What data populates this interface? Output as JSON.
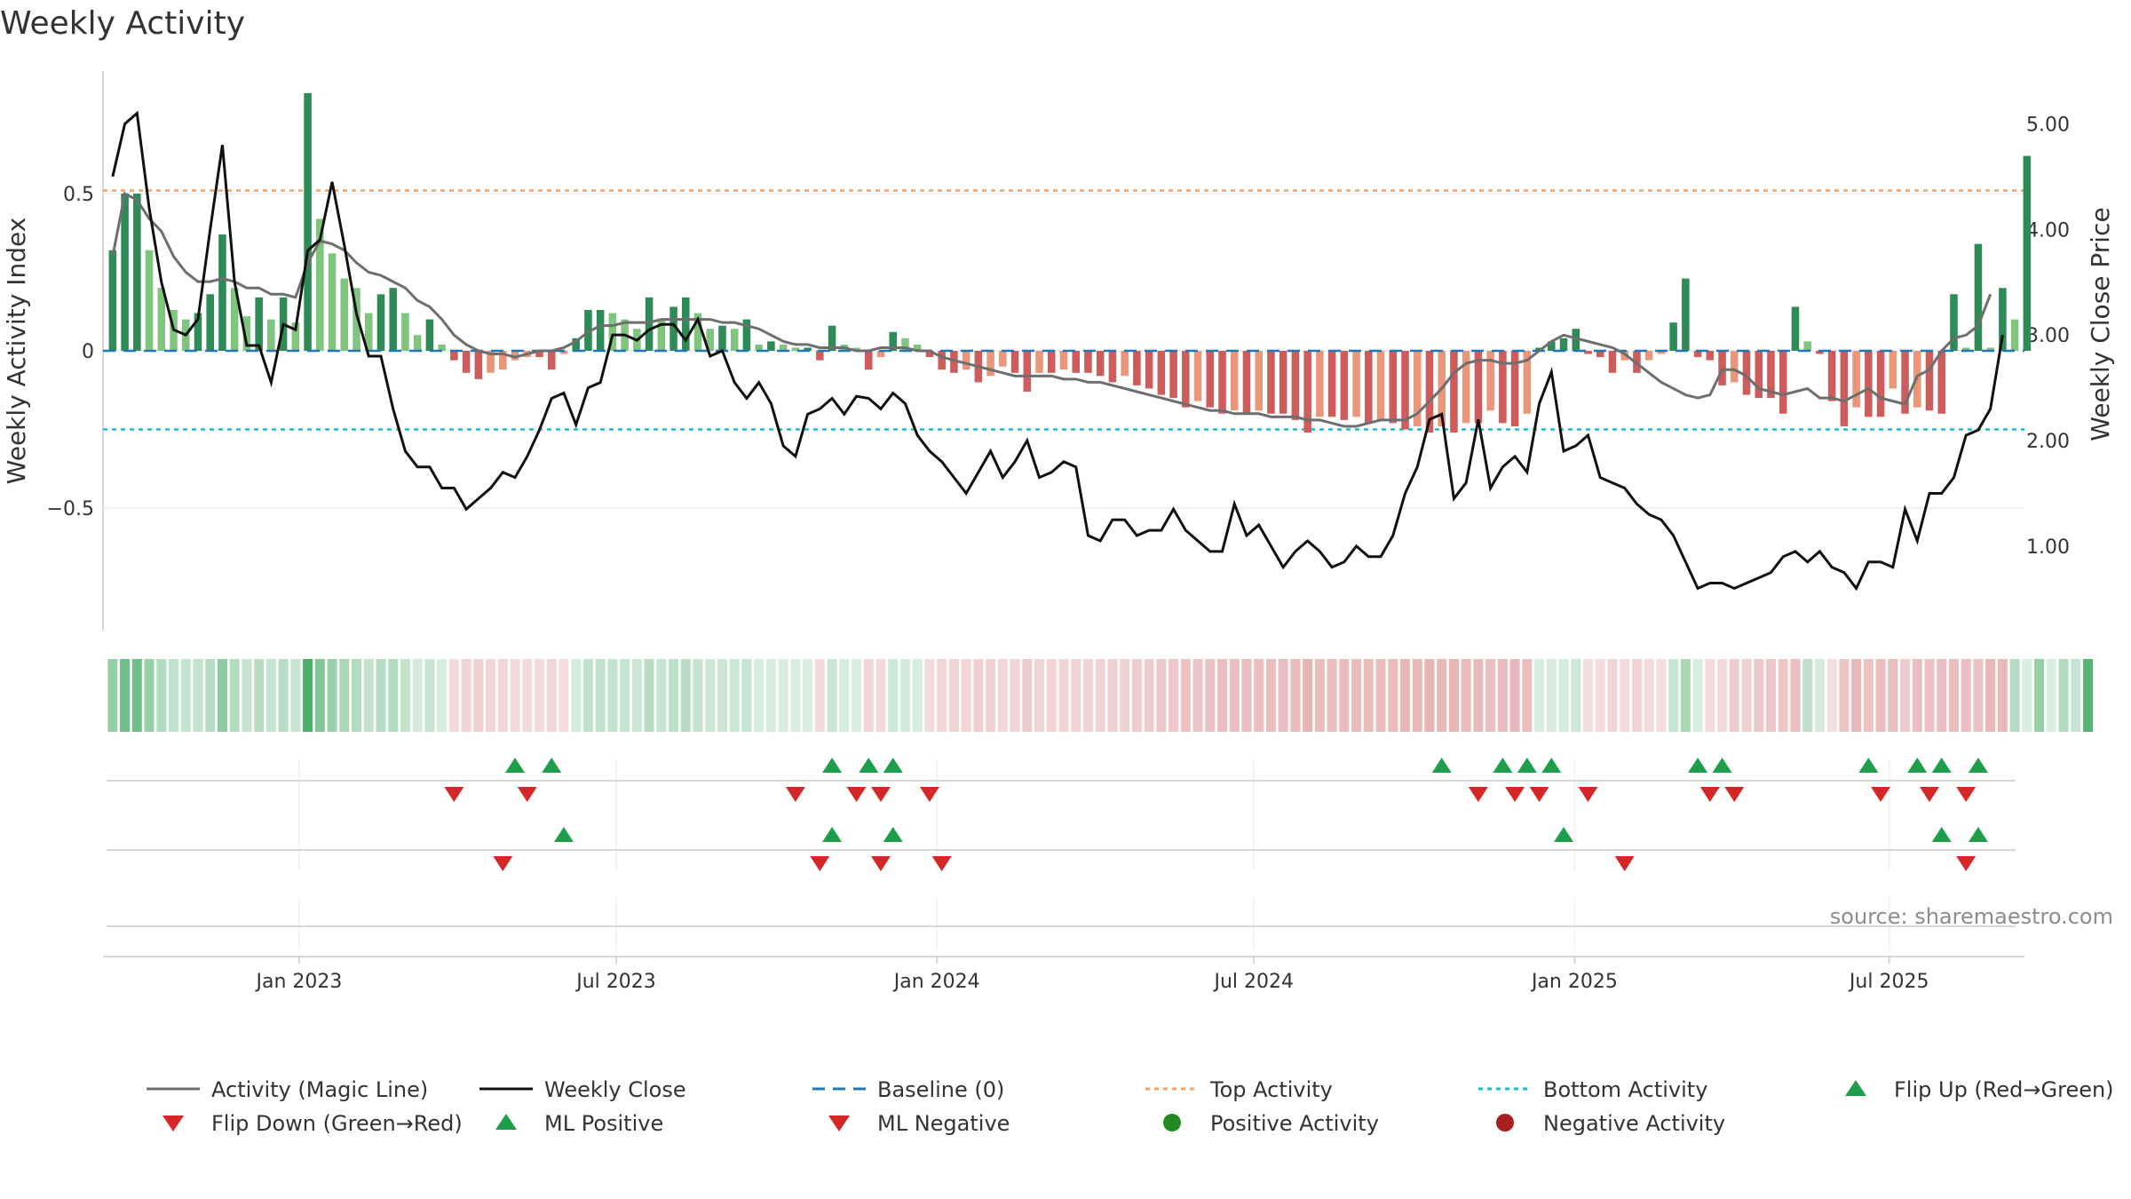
{
  "chart_data": {
    "type": "bar",
    "title": "Weekly Activity",
    "source": "source: sharemaestro.com",
    "left_axis": {
      "label": "Weekly Activity Index",
      "ylim": [
        -0.89,
        0.89
      ],
      "ticks": [
        {
          "value": 0.5,
          "label": "0.5"
        },
        {
          "value": 0,
          "label": "0"
        },
        {
          "value": -0.5,
          "label": "−0.5"
        }
      ]
    },
    "right_axis": {
      "label": "Weekly Close Price",
      "ylim": [
        0.2,
        5.5
      ],
      "ticks": [
        {
          "value": 5,
          "label": "5.00"
        },
        {
          "value": 4,
          "label": "4.00"
        },
        {
          "value": 3,
          "label": "3.00"
        },
        {
          "value": 2,
          "label": "2.00"
        },
        {
          "value": 1,
          "label": "1.00"
        }
      ]
    },
    "x_axis": {
      "start_week": 0,
      "end_week": 156,
      "ticks": [
        {
          "week": 15.3,
          "label": "Jan 2023"
        },
        {
          "week": 41.3,
          "label": "Jul 2023"
        },
        {
          "week": 67.6,
          "label": "Jan 2024"
        },
        {
          "week": 93.6,
          "label": "Jul 2024"
        },
        {
          "week": 119.9,
          "label": "Jan 2025"
        },
        {
          "week": 145.7,
          "label": "Jul 2025"
        }
      ]
    },
    "top_activity": 0.51,
    "bottom_activity": -0.25,
    "baseline": 0,
    "activity_weeks": [
      {
        "start": 0,
        "values": [
          0.32,
          0.5,
          0.5,
          0.32,
          0.2,
          0.13,
          0.1,
          0.12,
          0.18,
          0.37,
          0.2,
          0.11,
          0.17,
          0.1,
          0.17,
          0.09,
          0.82,
          0.42,
          0.31,
          0.23,
          0.2,
          0.12,
          0.18,
          0.2,
          0.12,
          0.05,
          0.1,
          0.02
        ]
      },
      {
        "start": 28,
        "values": [
          -0.03,
          -0.07,
          -0.09,
          -0.07,
          -0.06,
          -0.03,
          -0.02,
          -0.02,
          -0.06,
          -0.01
        ]
      },
      {
        "start": 38,
        "values": [
          0.04,
          0.13,
          0.13,
          0.12,
          0.1,
          0.07,
          0.17,
          0.1,
          0.14,
          0.17,
          0.12,
          0.07,
          0.08,
          0.07,
          0.1,
          0.02,
          0.03,
          0.02,
          0.01,
          0.01
        ]
      },
      {
        "start": 58,
        "values": [
          -0.03,
          -0.06,
          -0.06,
          -0.02,
          -0.01
        ]
      },
      {
        "start": 59,
        "values": [
          0.08
        ]
      },
      {
        "start": 60,
        "values": [
          0.02,
          0.01,
          -0.06,
          -0.02,
          0.06,
          0.04,
          0.02
        ]
      },
      {
        "start": 67,
        "values": [
          -0.02,
          -0.06,
          -0.07,
          -0.06,
          -0.1,
          -0.08,
          -0.05,
          -0.07,
          -0.13,
          -0.07,
          -0.07,
          -0.06,
          -0.07,
          -0.07,
          -0.08,
          -0.1,
          -0.08,
          -0.11,
          -0.12,
          -0.14,
          -0.15,
          -0.18,
          -0.16,
          -0.18,
          -0.2,
          -0.19,
          -0.2,
          -0.19,
          -0.2,
          -0.2,
          -0.22,
          -0.26,
          -0.21,
          -0.21,
          -0.22,
          -0.21,
          -0.23,
          -0.22,
          -0.23,
          -0.25,
          -0.24,
          -0.26,
          -0.24,
          -0.26,
          -0.23,
          -0.23,
          -0.19,
          -0.23,
          -0.24,
          -0.2
        ]
      },
      {
        "start": 117,
        "values": [
          0.01,
          0.03,
          0.04,
          0.07,
          -0.01,
          -0.02,
          -0.07,
          -0.03,
          -0.07,
          -0.03,
          -0.01,
          0.09,
          0.23,
          0.02
        ]
      },
      {
        "start": 130,
        "values": [
          -0.02,
          -0.03,
          -0.11,
          -0.1,
          -0.14,
          -0.15,
          -0.15,
          -0.2,
          0.14,
          0.03,
          -0.01
        ]
      },
      {
        "start": 141,
        "values": [
          -0.16,
          -0.24,
          -0.18,
          -0.21,
          -0.21,
          -0.12,
          -0.2,
          -0.18,
          -0.19,
          -0.2,
          -0.2,
          -0.18,
          -0.25,
          -0.24
        ]
      },
      {
        "start": 151,
        "values": [
          0.18,
          0.01,
          0.34,
          0.01,
          0.2,
          0.1,
          0.62
        ]
      }
    ],
    "magic_line": [
      0.3,
      0.5,
      0.48,
      0.42,
      0.38,
      0.3,
      0.25,
      0.22,
      0.22,
      0.23,
      0.22,
      0.2,
      0.2,
      0.18,
      0.18,
      0.17,
      0.28,
      0.35,
      0.34,
      0.32,
      0.28,
      0.25,
      0.24,
      0.22,
      0.2,
      0.16,
      0.14,
      0.1,
      0.05,
      0.02,
      0.0,
      -0.01,
      -0.01,
      -0.02,
      -0.01,
      0.0,
      0.0,
      0.01,
      0.03,
      0.06,
      0.08,
      0.08,
      0.09,
      0.09,
      0.09,
      0.1,
      0.1,
      0.1,
      0.1,
      0.1,
      0.09,
      0.09,
      0.08,
      0.07,
      0.05,
      0.03,
      0.02,
      0.02,
      0.01,
      0.01,
      0.01,
      0.0,
      0.0,
      0.01,
      0.01,
      0.01,
      0.0,
      0.0,
      -0.02,
      -0.03,
      -0.04,
      -0.05,
      -0.06,
      -0.07,
      -0.08,
      -0.08,
      -0.08,
      -0.08,
      -0.09,
      -0.09,
      -0.1,
      -0.1,
      -0.11,
      -0.12,
      -0.13,
      -0.14,
      -0.15,
      -0.16,
      -0.17,
      -0.18,
      -0.19,
      -0.19,
      -0.2,
      -0.2,
      -0.2,
      -0.21,
      -0.21,
      -0.21,
      -0.22,
      -0.22,
      -0.23,
      -0.24,
      -0.24,
      -0.23,
      -0.22,
      -0.22,
      -0.22,
      -0.2,
      -0.16,
      -0.12,
      -0.07,
      -0.04,
      -0.03,
      -0.03,
      -0.04,
      -0.04,
      -0.03,
      0.0,
      0.03,
      0.05,
      0.04,
      0.03,
      0.02,
      0.01,
      -0.01,
      -0.04,
      -0.07,
      -0.1,
      -0.12,
      -0.14,
      -0.15,
      -0.14,
      -0.06,
      -0.06,
      -0.08,
      -0.12,
      -0.13,
      -0.14,
      -0.13,
      -0.12,
      -0.15,
      -0.15,
      -0.16,
      -0.14,
      -0.12,
      -0.15,
      -0.16,
      -0.17,
      -0.08,
      -0.06,
      0.0,
      0.04,
      0.05,
      0.08,
      0.18
    ],
    "weekly_close": [
      4.5,
      5.0,
      5.1,
      4.2,
      3.5,
      3.05,
      3.0,
      3.15,
      4.0,
      4.8,
      3.5,
      2.9,
      2.9,
      2.55,
      3.1,
      3.05,
      3.8,
      3.9,
      4.45,
      3.85,
      3.2,
      2.8,
      2.8,
      2.3,
      1.9,
      1.75,
      1.75,
      1.55,
      1.55,
      1.35,
      1.45,
      1.55,
      1.7,
      1.65,
      1.85,
      2.1,
      2.4,
      2.45,
      2.15,
      2.5,
      2.55,
      3.0,
      3.0,
      2.95,
      3.05,
      3.1,
      3.1,
      2.95,
      3.15,
      2.8,
      2.85,
      2.55,
      2.4,
      2.55,
      2.35,
      1.95,
      1.85,
      2.25,
      2.3,
      2.4,
      2.25,
      2.42,
      2.4,
      2.3,
      2.45,
      2.35,
      2.05,
      1.9,
      1.8,
      1.65,
      1.5,
      1.7,
      1.9,
      1.65,
      1.8,
      2.0,
      1.65,
      1.7,
      1.8,
      1.75,
      1.1,
      1.05,
      1.25,
      1.25,
      1.1,
      1.15,
      1.15,
      1.35,
      1.15,
      1.05,
      0.95,
      0.95,
      1.4,
      1.1,
      1.2,
      1.0,
      0.8,
      0.95,
      1.05,
      0.95,
      0.8,
      0.85,
      1.0,
      0.9,
      0.9,
      1.1,
      1.5,
      1.75,
      2.2,
      2.25,
      1.45,
      1.6,
      2.2,
      1.55,
      1.75,
      1.85,
      1.7,
      2.35,
      2.65,
      1.9,
      1.95,
      2.05,
      1.65,
      1.6,
      1.55,
      1.4,
      1.3,
      1.25,
      1.1,
      0.85,
      0.6,
      0.65,
      0.65,
      0.6,
      0.65,
      0.7,
      0.75,
      0.9,
      0.95,
      0.85,
      0.95,
      0.8,
      0.75,
      0.6,
      0.85,
      0.85,
      0.8,
      1.35,
      1.05,
      1.5,
      1.5,
      1.65,
      2.05,
      2.1,
      2.3,
      3.0
    ],
    "heatmap_strength": [
      0.32,
      0.5,
      0.5,
      0.32,
      0.2,
      0.13,
      0.1,
      0.12,
      0.18,
      0.37,
      0.2,
      0.11,
      0.17,
      0.1,
      0.17,
      0.09,
      0.82,
      0.42,
      0.31,
      0.23,
      0.2,
      0.12,
      0.18,
      0.2,
      0.12,
      0.05,
      0.1,
      0.02,
      -0.03,
      -0.07,
      -0.09,
      -0.07,
      -0.06,
      -0.03,
      -0.02,
      -0.02,
      -0.06,
      -0.01,
      0.04,
      0.13,
      0.13,
      0.12,
      0.1,
      0.07,
      0.17,
      0.1,
      0.14,
      0.17,
      0.12,
      0.07,
      0.08,
      0.07,
      0.1,
      0.02,
      0.03,
      0.02,
      0.01,
      0.01,
      -0.03,
      0.08,
      0.02,
      0.01,
      -0.06,
      -0.02,
      0.06,
      0.04,
      0.02,
      -0.02,
      -0.06,
      -0.07,
      -0.06,
      -0.1,
      -0.08,
      -0.05,
      -0.07,
      -0.13,
      -0.07,
      -0.07,
      -0.06,
      -0.07,
      -0.07,
      -0.08,
      -0.1,
      -0.08,
      -0.11,
      -0.12,
      -0.14,
      -0.15,
      -0.18,
      -0.16,
      -0.18,
      -0.2,
      -0.19,
      -0.2,
      -0.19,
      -0.2,
      -0.2,
      -0.22,
      -0.26,
      -0.21,
      -0.21,
      -0.22,
      -0.21,
      -0.23,
      -0.22,
      -0.23,
      -0.25,
      -0.24,
      -0.26,
      -0.24,
      -0.26,
      -0.23,
      -0.23,
      -0.19,
      -0.23,
      -0.24,
      -0.2,
      0.01,
      0.03,
      0.04,
      0.07,
      -0.01,
      -0.02,
      -0.07,
      -0.03,
      -0.07,
      -0.03,
      -0.01,
      0.09,
      0.23,
      0.02,
      -0.02,
      -0.03,
      -0.11,
      -0.1,
      -0.14,
      -0.15,
      -0.15,
      -0.2,
      0.14,
      0.03,
      -0.01,
      -0.16,
      -0.24,
      -0.18,
      -0.21,
      -0.21,
      -0.12,
      -0.2,
      -0.18,
      -0.19,
      -0.2,
      -0.2,
      -0.18,
      -0.25,
      -0.24,
      0.18,
      0.01,
      0.34,
      0.01,
      0.2,
      0.1,
      0.62
    ],
    "flip_up_weeks": [
      33,
      36,
      59,
      62,
      64,
      109,
      114,
      116,
      118,
      130,
      132,
      144,
      148,
      150,
      153
    ],
    "flip_down_weeks": [
      28,
      34,
      56,
      61,
      63,
      67,
      112,
      115,
      117,
      121,
      131,
      133,
      145,
      149,
      152
    ],
    "ml_positive_weeks": [
      37,
      59,
      64,
      119,
      150,
      153
    ],
    "ml_negative_weeks": [
      32,
      58,
      63,
      68,
      124,
      152
    ],
    "positive_activity_weeks": [],
    "negative_activity_weeks": [],
    "legend": [
      {
        "key": "magic",
        "label": "Activity (Magic Line)"
      },
      {
        "key": "close",
        "label": "Weekly Close"
      },
      {
        "key": "baseline",
        "label": "Baseline (0)"
      },
      {
        "key": "top",
        "label": "Top Activity"
      },
      {
        "key": "bottom",
        "label": "Bottom Activity"
      },
      {
        "key": "flipup",
        "label": "Flip Up (Red→Green)"
      },
      {
        "key": "flipdown",
        "label": "Flip Down (Green→Red)"
      },
      {
        "key": "mlpos",
        "label": "ML Positive"
      },
      {
        "key": "mlneg",
        "label": "ML Negative"
      },
      {
        "key": "posact",
        "label": "Positive Activity"
      },
      {
        "key": "negact",
        "label": "Negative Activity"
      }
    ],
    "colors": {
      "strong_green": "#2e8b57",
      "light_green": "#7fc47f",
      "strong_red": "#cd5c5c",
      "light_red": "#e9967a",
      "magic_line": "#6e6e6e",
      "close_line": "#111111",
      "baseline": "#1f77b4",
      "top": "#f4a261",
      "bottom": "#17becf",
      "marker_up": "#1e9e4a",
      "marker_down": "#d62728",
      "pos_dot": "#228b22",
      "neg_dot": "#a82020"
    }
  }
}
